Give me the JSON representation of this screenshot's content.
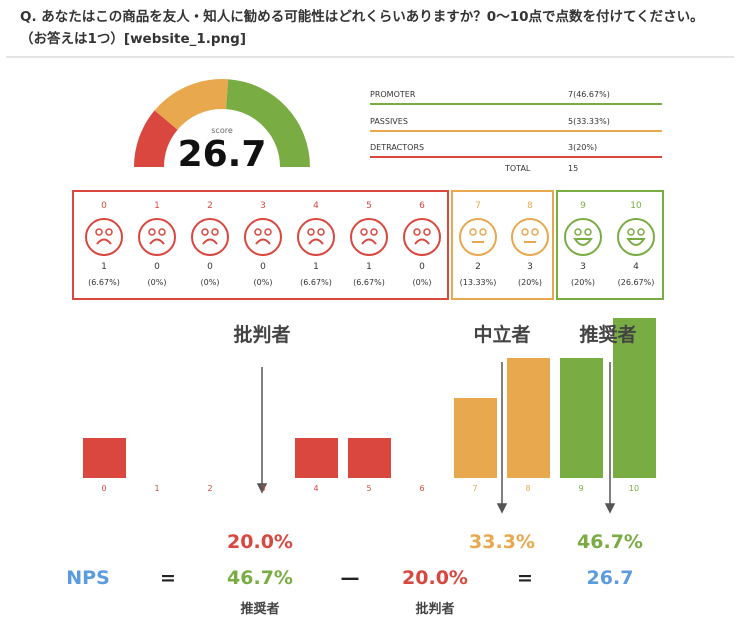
{
  "question": "Q. あなたはこの商品を友人・知人に勧める可能性はどれくらいありますか？0〜10点で点数を付けてください。（お答えは1つ）[website_1.png]",
  "gauge": {
    "label": "score",
    "value": "26.7"
  },
  "summary": {
    "rows": [
      {
        "label": "PROMOTER",
        "value": "7(46.67%)",
        "color": "#7aac44"
      },
      {
        "label": "PASSIVES",
        "value": "5(33.33%)",
        "color": "#e8a84e"
      },
      {
        "label": "DETRACTORS",
        "value": "3(20%)",
        "color": "#d9473e"
      }
    ],
    "total_label": "TOTAL",
    "total_value": "15"
  },
  "colors": {
    "red": "#d9473e",
    "orange": "#e8a84e",
    "green": "#7aac44",
    "blue": "#5b9be0"
  },
  "scores": [
    {
      "score": "0",
      "count": 1,
      "pct": "(6.67%)"
    },
    {
      "score": "1",
      "count": 0,
      "pct": "(0%)"
    },
    {
      "score": "2",
      "count": 0,
      "pct": "(0%)"
    },
    {
      "score": "3",
      "count": 0,
      "pct": "(0%)"
    },
    {
      "score": "4",
      "count": 1,
      "pct": "(6.67%)"
    },
    {
      "score": "5",
      "count": 1,
      "pct": "(6.67%)"
    },
    {
      "score": "6",
      "count": 0,
      "pct": "(0%)"
    },
    {
      "score": "7",
      "count": 2,
      "pct": "(13.33%)"
    },
    {
      "score": "8",
      "count": 3,
      "pct": "(20%)"
    },
    {
      "score": "9",
      "count": 3,
      "pct": "(20%)"
    },
    {
      "score": "10",
      "count": 4,
      "pct": "(26.67%)"
    }
  ],
  "groups": {
    "detractors": "批判者",
    "passives": "中立者",
    "promoters": "推奨者"
  },
  "formula": {
    "det_pct": "20.0%",
    "pas_pct": "33.3%",
    "pro_pct": "46.7%",
    "nps": "NPS",
    "eq": "=",
    "minus": "—",
    "pro": "46.7%",
    "det": "20.0%",
    "result": "26.7",
    "pro_label": "推奨者",
    "det_label": "批判者"
  }
}
